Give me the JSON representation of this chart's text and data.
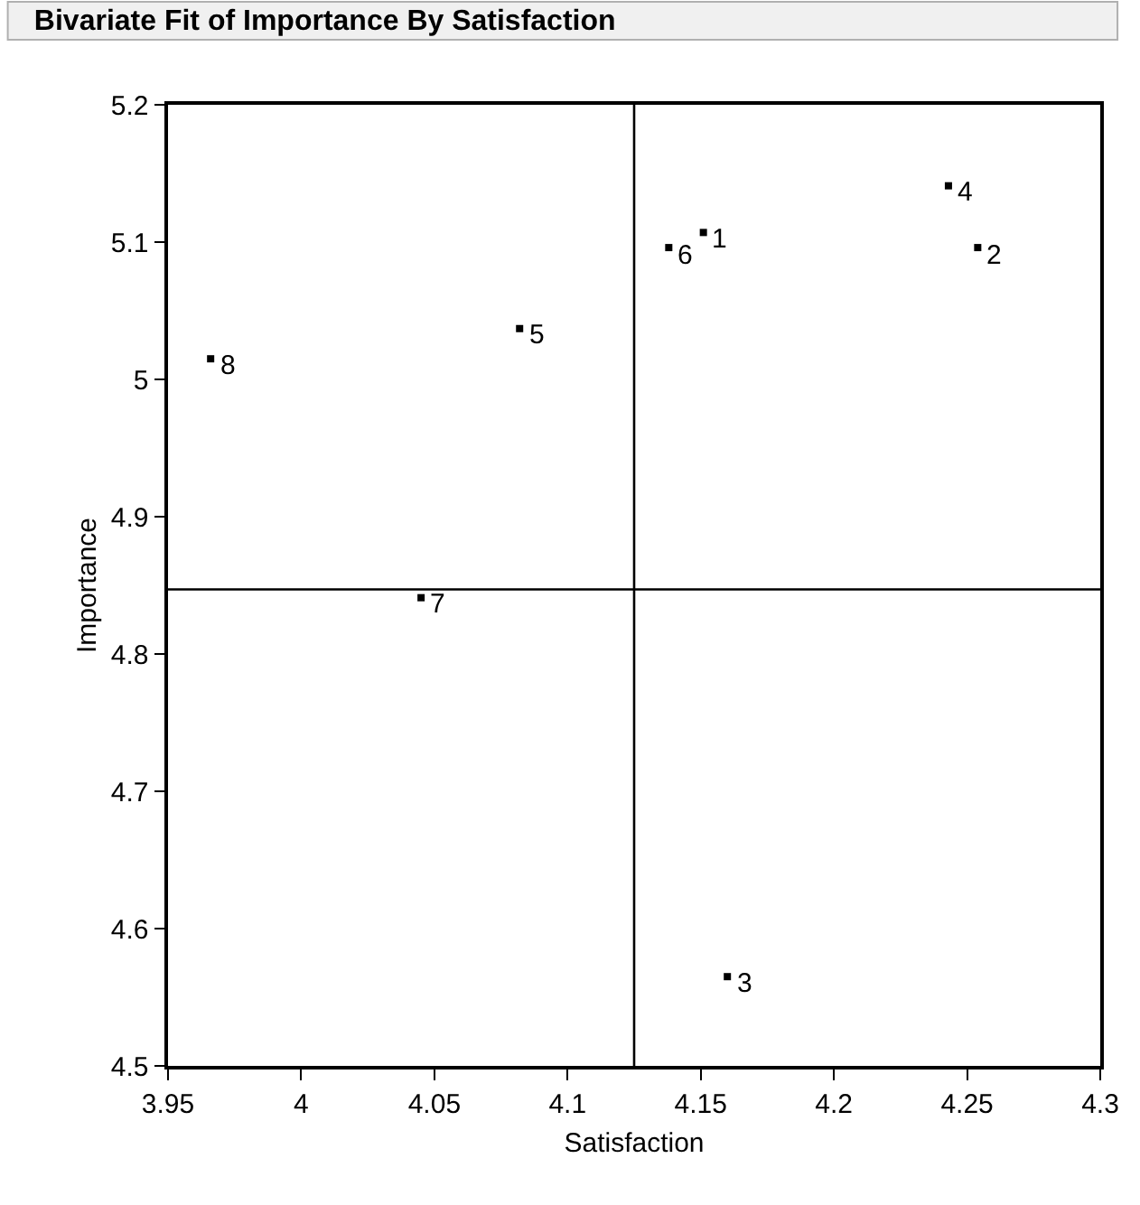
{
  "chart_data": {
    "type": "scatter",
    "title": "Bivariate Fit of Importance By Satisfaction",
    "xlabel": "Satisfaction",
    "ylabel": "Importance",
    "x": [
      4.151,
      4.254,
      4.16,
      4.243,
      4.082,
      4.138,
      4.045,
      3.966
    ],
    "series": [
      {
        "color": "#000000",
        "values": [
          5.107,
          5.096,
          4.565,
          5.141,
          5.037,
          5.096,
          4.841,
          5.015
        ]
      }
    ],
    "annotations": [
      {
        "text": "1",
        "x": 4.151,
        "y": 5.107
      },
      {
        "text": "2",
        "x": 4.254,
        "y": 5.096
      },
      {
        "text": "3",
        "x": 4.16,
        "y": 4.565
      },
      {
        "text": "4",
        "x": 4.243,
        "y": 5.141
      },
      {
        "text": "5",
        "x": 4.082,
        "y": 5.037
      },
      {
        "text": "6",
        "x": 4.138,
        "y": 5.096
      },
      {
        "text": "7",
        "x": 4.045,
        "y": 4.841
      },
      {
        "text": "8",
        "x": 3.966,
        "y": 5.015
      }
    ],
    "ref_lines": [
      {
        "axis": "x",
        "value": 4.125,
        "color": "#000000"
      },
      {
        "axis": "y",
        "value": 4.847,
        "color": "#000000"
      }
    ],
    "xlim": [
      3.95,
      4.3
    ],
    "xticks": [
      3.95,
      4,
      4.05,
      4.1,
      4.15,
      4.2,
      4.25,
      4.3
    ],
    "ylim": [
      4.5,
      5.2
    ],
    "yticks": [
      4.5,
      4.6,
      4.7,
      4.8,
      4.9,
      5,
      5.1,
      5.2
    ],
    "marker": "square"
  }
}
